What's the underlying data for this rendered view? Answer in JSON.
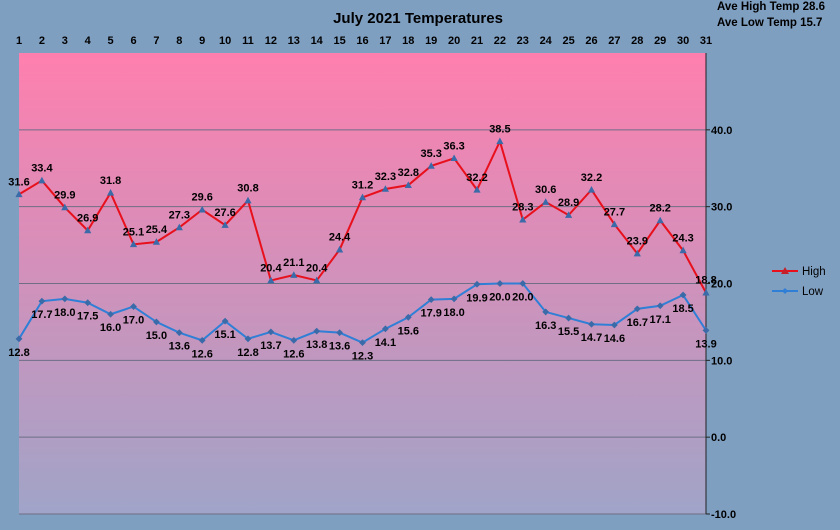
{
  "chart_data": {
    "type": "line",
    "title": "July 2021 Temperatures",
    "x": [
      "1",
      "2",
      "3",
      "4",
      "5",
      "6",
      "7",
      "8",
      "9",
      "10",
      "11",
      "12",
      "13",
      "14",
      "15",
      "16",
      "17",
      "18",
      "19",
      "20",
      "21",
      "22",
      "23",
      "24",
      "25",
      "26",
      "27",
      "28",
      "29",
      "30",
      "31"
    ],
    "series": [
      {
        "name": "High",
        "color": "#e8101c",
        "values": [
          31.6,
          33.4,
          29.9,
          26.9,
          31.8,
          25.1,
          25.4,
          27.3,
          29.6,
          27.6,
          30.8,
          20.4,
          21.1,
          20.4,
          24.4,
          31.2,
          32.3,
          32.8,
          35.3,
          36.3,
          32.2,
          38.5,
          28.3,
          30.6,
          28.9,
          32.2,
          27.7,
          23.9,
          28.2,
          24.3,
          18.8
        ]
      },
      {
        "name": "Low",
        "color": "#2f7fd6",
        "values": [
          12.8,
          17.7,
          18.0,
          17.5,
          16.0,
          17.0,
          15.0,
          13.6,
          12.6,
          15.1,
          12.8,
          13.7,
          12.6,
          13.8,
          13.6,
          12.3,
          14.1,
          15.6,
          17.9,
          18.0,
          19.9,
          20.0,
          20.0,
          16.3,
          15.5,
          14.7,
          14.6,
          16.7,
          17.1,
          18.5,
          13.9
        ]
      }
    ],
    "y_ticks": [
      "40.0",
      "30.0",
      "20.0",
      "10.0",
      "0.0",
      "-10.0"
    ],
    "ylim": [
      -10,
      50
    ],
    "grid": true,
    "legend_position": "right",
    "annotations": {
      "ave_high": "Ave High Temp 28.6",
      "ave_low": "Ave Low Temp 15.7"
    },
    "colors": {
      "page_background": "#7f9fc1",
      "plot_top": "#ff7fae",
      "plot_bottom": "#a0a4c8",
      "grid": "#6e6e86"
    }
  }
}
